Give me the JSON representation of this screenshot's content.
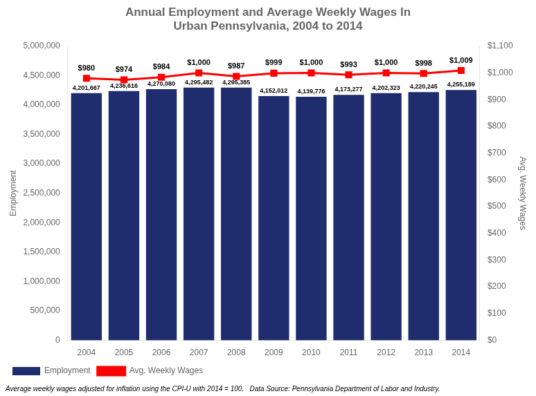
{
  "chart_data": {
    "type": "bar",
    "title": "Annual Employment and Average Weekly Wages In\nUrban Pennsylvania, 2004 to 2014",
    "footnote": "Average weekly wages adjusted for inflation using the CPI-U with 2014 = 100.   Data Source: Pennsylvania Department of Labor and Industry.",
    "categories": [
      "2004",
      "2005",
      "2006",
      "2007",
      "2008",
      "2009",
      "2010",
      "2011",
      "2012",
      "2013",
      "2014"
    ],
    "series": [
      {
        "name": "Employment",
        "type": "bar",
        "color": "#1F2D6E",
        "values": [
          4201667,
          4236616,
          4270080,
          4295482,
          4295385,
          4152012,
          4139776,
          4173277,
          4202323,
          4220245,
          4255189
        ],
        "value_labels": [
          "4,201,667",
          "4,236,616",
          "4,270,080",
          "4,295,482",
          "4,295,385",
          "4,152,012",
          "4,139,776",
          "4,173,277",
          "4,202,323",
          "4,220,245",
          "4,255,189"
        ]
      },
      {
        "name": "Avg. Weekly Wages",
        "type": "line",
        "axis": "y2",
        "color": "#FF0000",
        "marker": "square",
        "values": [
          980,
          974,
          984,
          1000,
          987,
          999,
          1000,
          993,
          1000,
          998,
          1009
        ],
        "value_labels": [
          "$980",
          "$974",
          "$984",
          "$1,000",
          "$987",
          "$999",
          "$1,000",
          "$993",
          "$1,000",
          "$998",
          "$1,009"
        ]
      }
    ],
    "ylabel": "Employment",
    "y2label": "Avg. Weekly Wages",
    "ylim": [
      0,
      5000000
    ],
    "yticks": [
      0,
      {
        "value": 500000,
        "label": "500,000"
      },
      {
        "value": 1000000,
        "label": "1,000,000"
      },
      {
        "value": 1500000,
        "label": "1,500,000"
      },
      {
        "value": 2000000,
        "label": "2,000,000"
      },
      {
        "value": 2500000,
        "label": "2,500,000"
      },
      {
        "value": 3000000,
        "label": "3,000,000"
      },
      {
        "value": 3500000,
        "label": "3,500,000"
      },
      {
        "value": 4000000,
        "label": "4,000,000"
      },
      {
        "value": 4500000,
        "label": "4,500,000"
      },
      {
        "value": 5000000,
        "label": "5,000,000"
      }
    ],
    "y2lim": [
      0,
      1100
    ],
    "y2ticks": [
      {
        "value": 0,
        "label": "$0"
      },
      {
        "value": 100,
        "label": "$100"
      },
      {
        "value": 200,
        "label": "$200"
      },
      {
        "value": 300,
        "label": "$300"
      },
      {
        "value": 400,
        "label": "$400"
      },
      {
        "value": 500,
        "label": "$500"
      },
      {
        "value": 600,
        "label": "$600"
      },
      {
        "value": 700,
        "label": "$700"
      },
      {
        "value": 800,
        "label": "$800"
      },
      {
        "value": 900,
        "label": "$900"
      },
      {
        "value": 1000,
        "label": "$1,000"
      },
      {
        "value": 1100,
        "label": "$1,100"
      }
    ],
    "grid": false,
    "legend": "lower left",
    "data_labels": true
  }
}
